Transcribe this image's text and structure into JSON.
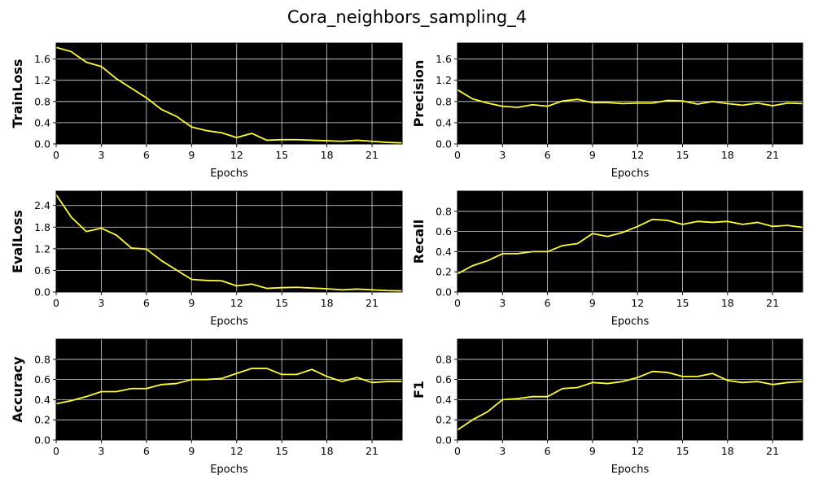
{
  "figure": {
    "title": "Cora_neighbors_sampling_4",
    "colors": {
      "plot_background": "#000000",
      "line": "#ffff33",
      "grid": "#ffffff"
    }
  },
  "chart_data": [
    {
      "type": "line",
      "title": "",
      "xlabel": "Epochs",
      "ylabel": "TrainLoss",
      "xlim": [
        0,
        23
      ],
      "ylim": [
        0,
        1.9
      ],
      "xticks": [
        0,
        3,
        6,
        9,
        12,
        15,
        18,
        21
      ],
      "yticks": [
        0.0,
        0.4,
        0.8,
        1.2,
        1.6
      ],
      "ytick_labels": [
        "0.0",
        "0.4",
        "0.8",
        "1.2",
        "1.6"
      ],
      "grid": true,
      "x": [
        0,
        1,
        2,
        3,
        4,
        5,
        6,
        7,
        8,
        9,
        10,
        11,
        12,
        13,
        14,
        15,
        16,
        17,
        18,
        19,
        20,
        21,
        22,
        23
      ],
      "series": [
        {
          "values": [
            1.82,
            1.74,
            1.54,
            1.46,
            1.23,
            1.05,
            0.87,
            0.65,
            0.52,
            0.32,
            0.25,
            0.21,
            0.12,
            0.2,
            0.07,
            0.08,
            0.08,
            0.07,
            0.06,
            0.05,
            0.07,
            0.05,
            0.03,
            0.02
          ]
        }
      ]
    },
    {
      "type": "line",
      "title": "",
      "xlabel": "Epochs",
      "ylabel": "Precision",
      "xlim": [
        0,
        23
      ],
      "ylim": [
        0,
        1.9
      ],
      "xticks": [
        0,
        3,
        6,
        9,
        12,
        15,
        18,
        21
      ],
      "yticks": [
        0.0,
        0.4,
        0.8,
        1.2,
        1.6
      ],
      "ytick_labels": [
        "0.0",
        "0.4",
        "0.8",
        "1.2",
        "1.6"
      ],
      "grid": true,
      "x": [
        0,
        1,
        2,
        3,
        4,
        5,
        6,
        7,
        8,
        9,
        10,
        11,
        12,
        13,
        14,
        15,
        16,
        17,
        18,
        19,
        20,
        21,
        22,
        23
      ],
      "series": [
        {
          "values": [
            1.02,
            0.85,
            0.77,
            0.71,
            0.69,
            0.74,
            0.71,
            0.81,
            0.84,
            0.78,
            0.78,
            0.76,
            0.77,
            0.77,
            0.82,
            0.81,
            0.75,
            0.8,
            0.76,
            0.73,
            0.77,
            0.72,
            0.77,
            0.76
          ]
        }
      ]
    },
    {
      "type": "line",
      "title": "",
      "xlabel": "Epochs",
      "ylabel": "EvalLoss",
      "xlim": [
        0,
        23
      ],
      "ylim": [
        0,
        2.8
      ],
      "xticks": [
        0,
        3,
        6,
        9,
        12,
        15,
        18,
        21
      ],
      "yticks": [
        0.0,
        0.6,
        1.2,
        1.8,
        2.4
      ],
      "ytick_labels": [
        "0.0",
        "0.6",
        "1.2",
        "1.8",
        "2.4"
      ],
      "grid": true,
      "x": [
        0,
        1,
        2,
        3,
        4,
        5,
        6,
        7,
        8,
        9,
        10,
        11,
        12,
        13,
        14,
        15,
        16,
        17,
        18,
        19,
        20,
        21,
        22,
        23
      ],
      "series": [
        {
          "values": [
            2.7,
            2.08,
            1.68,
            1.77,
            1.58,
            1.22,
            1.19,
            0.87,
            0.61,
            0.35,
            0.32,
            0.31,
            0.17,
            0.22,
            0.1,
            0.12,
            0.13,
            0.11,
            0.09,
            0.06,
            0.08,
            0.06,
            0.04,
            0.03
          ]
        }
      ]
    },
    {
      "type": "line",
      "title": "",
      "xlabel": "Epochs",
      "ylabel": "Recall",
      "xlim": [
        0,
        23
      ],
      "ylim": [
        0,
        1.0
      ],
      "xticks": [
        0,
        3,
        6,
        9,
        12,
        15,
        18,
        21
      ],
      "yticks": [
        0.0,
        0.2,
        0.4,
        0.6,
        0.8
      ],
      "ytick_labels": [
        "0.0",
        "0.2",
        "0.4",
        "0.6",
        "0.8"
      ],
      "grid": true,
      "x": [
        0,
        1,
        2,
        3,
        4,
        5,
        6,
        7,
        8,
        9,
        10,
        11,
        12,
        13,
        14,
        15,
        16,
        17,
        18,
        19,
        20,
        21,
        22,
        23
      ],
      "series": [
        {
          "values": [
            0.18,
            0.26,
            0.31,
            0.38,
            0.38,
            0.4,
            0.4,
            0.46,
            0.48,
            0.58,
            0.55,
            0.59,
            0.65,
            0.72,
            0.71,
            0.67,
            0.7,
            0.69,
            0.7,
            0.67,
            0.69,
            0.65,
            0.66,
            0.64
          ]
        }
      ]
    },
    {
      "type": "line",
      "title": "",
      "xlabel": "Epochs",
      "ylabel": "Accuracy",
      "xlim": [
        0,
        23
      ],
      "ylim": [
        0,
        1.0
      ],
      "xticks": [
        0,
        3,
        6,
        9,
        12,
        15,
        18,
        21
      ],
      "yticks": [
        0.0,
        0.2,
        0.4,
        0.6,
        0.8
      ],
      "ytick_labels": [
        "0.0",
        "0.2",
        "0.4",
        "0.6",
        "0.8"
      ],
      "grid": true,
      "x": [
        0,
        1,
        2,
        3,
        4,
        5,
        6,
        7,
        8,
        9,
        10,
        11,
        12,
        13,
        14,
        15,
        16,
        17,
        18,
        19,
        20,
        21,
        22,
        23
      ],
      "series": [
        {
          "values": [
            0.36,
            0.39,
            0.43,
            0.48,
            0.48,
            0.51,
            0.51,
            0.55,
            0.56,
            0.6,
            0.6,
            0.61,
            0.66,
            0.71,
            0.71,
            0.65,
            0.65,
            0.7,
            0.63,
            0.58,
            0.62,
            0.57,
            0.58,
            0.58
          ]
        }
      ]
    },
    {
      "type": "line",
      "title": "",
      "xlabel": "Epochs",
      "ylabel": "F1",
      "xlim": [
        0,
        23
      ],
      "ylim": [
        0,
        1.0
      ],
      "xticks": [
        0,
        3,
        6,
        9,
        12,
        15,
        18,
        21
      ],
      "yticks": [
        0.0,
        0.2,
        0.4,
        0.6,
        0.8
      ],
      "ytick_labels": [
        "0.0",
        "0.2",
        "0.4",
        "0.6",
        "0.8"
      ],
      "grid": true,
      "x": [
        0,
        1,
        2,
        3,
        4,
        5,
        6,
        7,
        8,
        9,
        10,
        11,
        12,
        13,
        14,
        15,
        16,
        17,
        18,
        19,
        20,
        21,
        22,
        23
      ],
      "series": [
        {
          "values": [
            0.1,
            0.2,
            0.28,
            0.4,
            0.41,
            0.43,
            0.43,
            0.51,
            0.52,
            0.57,
            0.56,
            0.58,
            0.62,
            0.68,
            0.67,
            0.63,
            0.63,
            0.66,
            0.59,
            0.57,
            0.58,
            0.55,
            0.57,
            0.58
          ]
        }
      ]
    }
  ]
}
